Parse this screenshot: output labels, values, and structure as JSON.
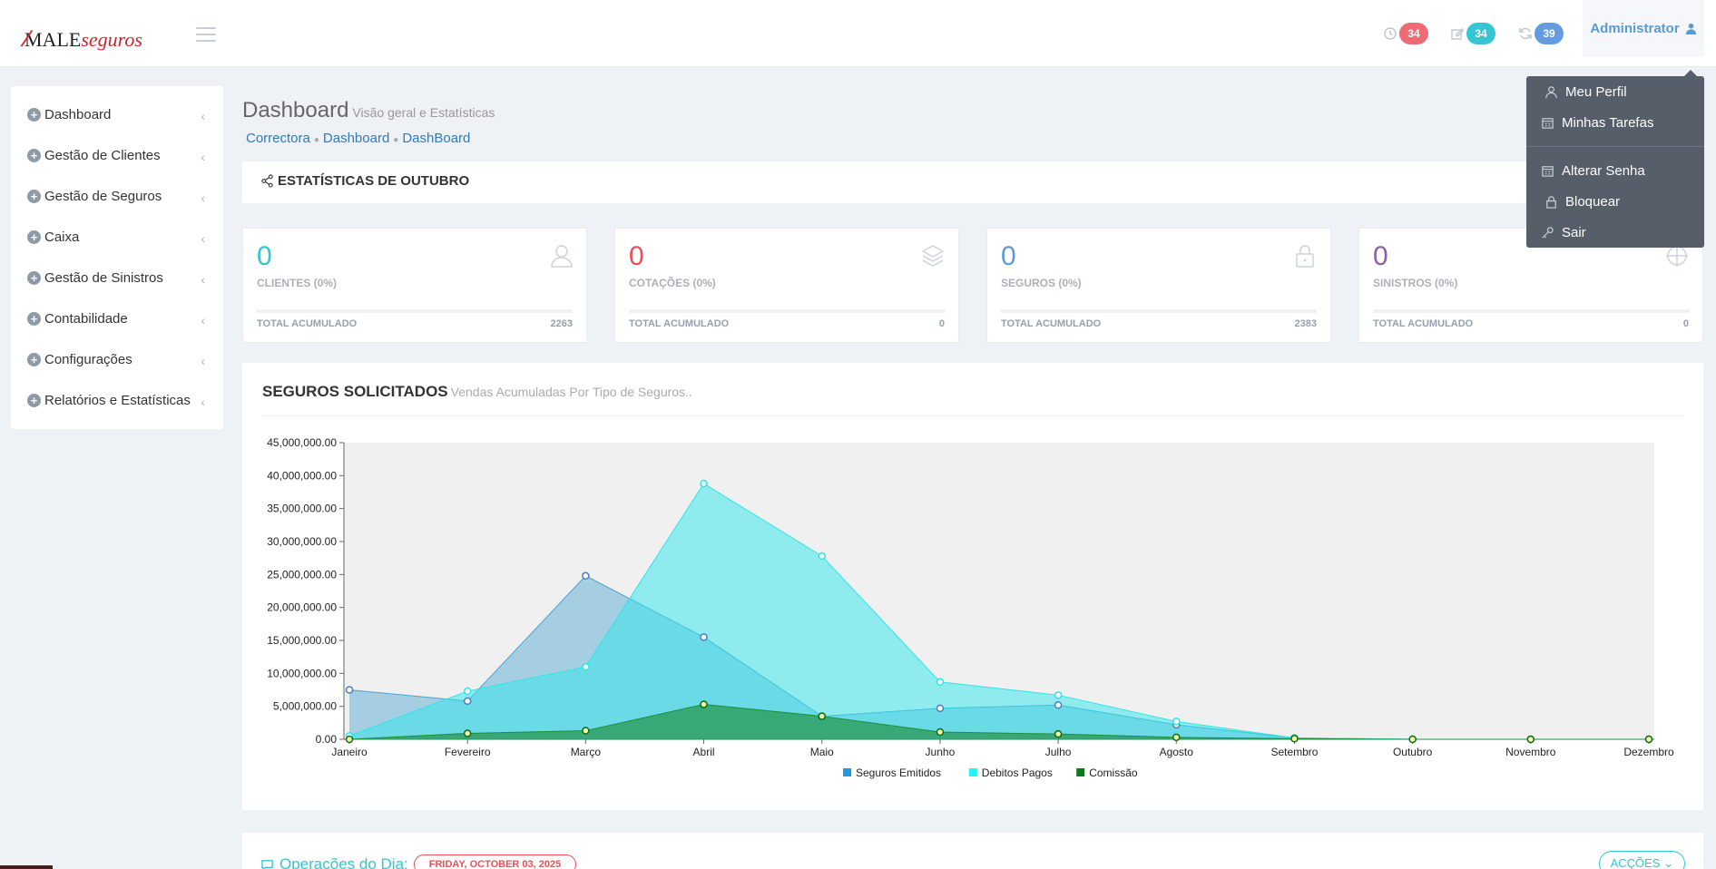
{
  "header": {
    "logo_primary": "MALE",
    "logo_secondary": "seguros",
    "notifications": [
      {
        "icon": "clock-icon",
        "count": "34",
        "color": "#ed6b75"
      },
      {
        "icon": "edit-icon",
        "count": "34",
        "color": "#36c6d3"
      },
      {
        "icon": "refresh-icon",
        "count": "39",
        "color": "#659be0"
      }
    ],
    "user_label": "Administrator"
  },
  "user_menu": {
    "items": [
      {
        "label": "Meu Perfil",
        "icon": "user-icon"
      },
      {
        "label": "Minhas Tarefas",
        "icon": "calendar-icon"
      },
      {
        "label": "Alterar Senha",
        "icon": "calendar-icon"
      },
      {
        "label": "Bloquear",
        "icon": "lock-icon"
      },
      {
        "label": "Sair",
        "icon": "key-icon"
      }
    ]
  },
  "sidebar": {
    "items": [
      {
        "label": "Dashboard"
      },
      {
        "label": "Gestão de Clientes"
      },
      {
        "label": "Gestão de Seguros"
      },
      {
        "label": "Caixa"
      },
      {
        "label": "Gestão de Sinistros"
      },
      {
        "label": "Contabilidade"
      },
      {
        "label": "Configurações"
      },
      {
        "label": "Relatórios e Estatísticas"
      }
    ]
  },
  "page": {
    "title": "Dashboard",
    "subtitle": "Visão geral e Estatísticas",
    "breadcrumbs": [
      "Correctora",
      "Dashboard",
      "DashBoard"
    ],
    "stats_title": "ESTATÍSTICAS DE OUTUBRO"
  },
  "cards": [
    {
      "value": "0",
      "label": "CLIENTES (0%)",
      "total_label": "TOTAL ACUMULADO",
      "total": "2263",
      "color": "#32c5d2",
      "icon": "users-icon"
    },
    {
      "value": "0",
      "label": "COTAÇÕES (0%)",
      "total_label": "TOTAL ACUMULADO",
      "total": "0",
      "color": "#e7505a",
      "icon": "layers-icon"
    },
    {
      "value": "0",
      "label": "SEGUROS (0%)",
      "total_label": "TOTAL ACUMULADO",
      "total": "2383",
      "color": "#5c9bd1",
      "icon": "lock-icon"
    },
    {
      "value": "0",
      "label": "SINISTROS (0%)",
      "total_label": "TOTAL ACUMULADO",
      "total": "0",
      "color": "#8e5fa2",
      "icon": "target-icon"
    }
  ],
  "chart_panel": {
    "title": "SEGUROS SOLICITADOS",
    "subtitle": "Vendas Acumuladas Por Tipo de Seguros.."
  },
  "chart_data": {
    "type": "area",
    "categories": [
      "Janeiro",
      "Fevereiro",
      "Março",
      "Abril",
      "Maio",
      "Junho",
      "Julho",
      "Agosto",
      "Setembro",
      "Outubro",
      "Novembro",
      "Dezembro"
    ],
    "ylim": [
      0,
      45000000
    ],
    "yticks": [
      "0.00",
      "5,000,000.00",
      "10,000,000.00",
      "15,000,000.00",
      "20,000,000.00",
      "25,000,000.00",
      "30,000,000.00",
      "35,000,000.00",
      "40,000,000.00",
      "45,000,000.00"
    ],
    "legend_position": "bottom-center",
    "series": [
      {
        "name": "Seguros Emitidos",
        "color": "#4ba3d3",
        "values": [
          7500000,
          5800000,
          24800000,
          15500000,
          3500000,
          4700000,
          5200000,
          2200000,
          200000,
          0,
          0,
          0
        ]
      },
      {
        "name": "Debitos Pagos",
        "color": "#2ee5e9",
        "values": [
          500000,
          7300000,
          11000000,
          38800000,
          27800000,
          8700000,
          6700000,
          2700000,
          200000,
          0,
          0,
          0
        ]
      },
      {
        "name": "Comissão",
        "color": "#1a8f3a",
        "values": [
          0,
          900000,
          1300000,
          5300000,
          3500000,
          1100000,
          800000,
          300000,
          100000,
          0,
          0,
          0
        ]
      }
    ]
  },
  "bottom": {
    "ops_title": "Operações do Dia:",
    "date_label": "FRIDAY, OCTOBER 03, 2025",
    "actions_label": "ACÇÕES"
  }
}
